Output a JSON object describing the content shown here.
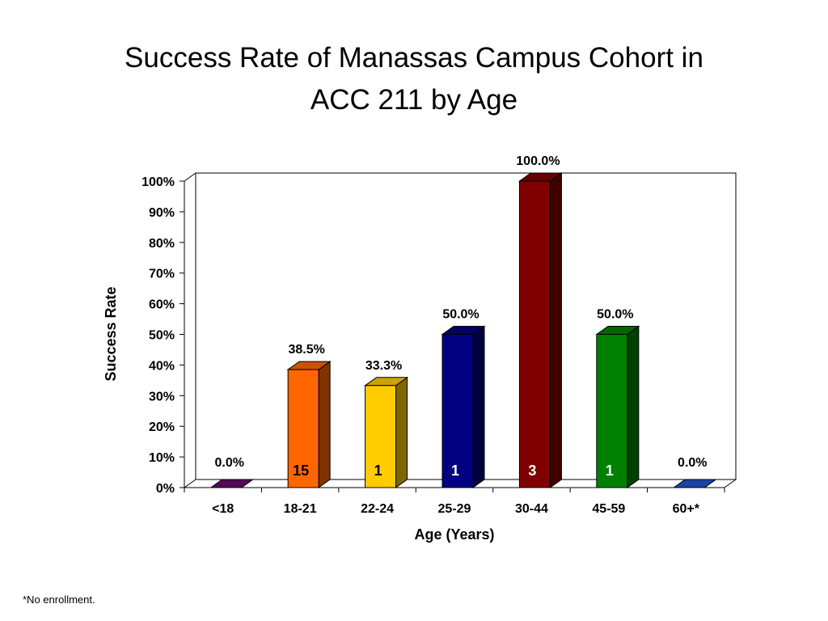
{
  "title_line1": "Success Rate of Manassas Campus Cohort in",
  "title_line2": "ACC 211 by Age",
  "footnote": "*No enrollment.",
  "chart_data": {
    "type": "bar",
    "title": "Success Rate of Manassas Campus Cohort in ACC 211 by Age",
    "xlabel": "Age (Years)",
    "ylabel": "Success Rate",
    "ylim": [
      0,
      100
    ],
    "yticks": [
      "0%",
      "10%",
      "20%",
      "30%",
      "40%",
      "50%",
      "60%",
      "70%",
      "80%",
      "90%",
      "100%"
    ],
    "categories": [
      "<18",
      "18-21",
      "22-24",
      "25-29",
      "30-44",
      "45-59",
      "60+*"
    ],
    "values": [
      0.0,
      38.5,
      33.3,
      50.0,
      100.0,
      50.0,
      0.0
    ],
    "value_labels": [
      "0.0%",
      "38.5%",
      "33.3%",
      "50.0%",
      "100.0%",
      "50.0%",
      "0.0%"
    ],
    "counts": [
      "",
      "15",
      "1",
      "1",
      "3",
      "1",
      ""
    ],
    "colors": [
      "#6B0D6B",
      "#FF6600",
      "#FFCC00",
      "#000080",
      "#800000",
      "#008000",
      "#2255CC"
    ],
    "count_colors": [
      "#000000",
      "#000000",
      "#000000",
      "#ffffff",
      "#ffffff",
      "#ffffff",
      "#000000"
    ],
    "grid": false,
    "legend": "none",
    "style": "3d-column"
  }
}
